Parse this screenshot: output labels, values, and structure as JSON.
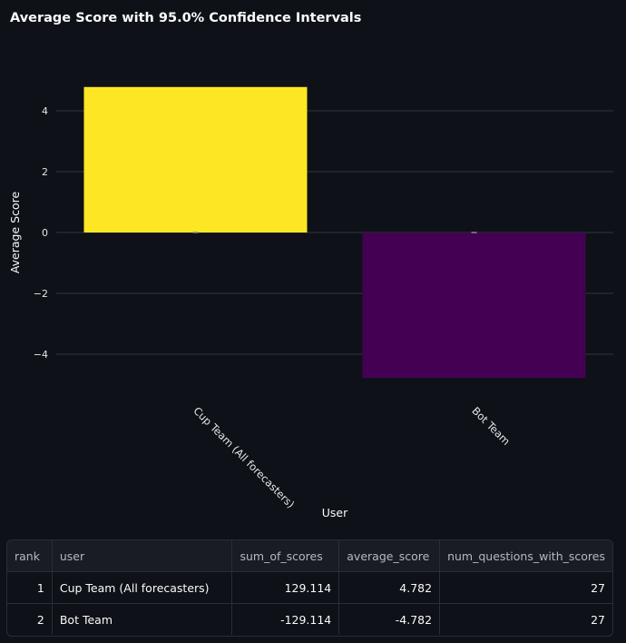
{
  "chart_data": {
    "type": "bar",
    "title": "Average Score with 95.0% Confidence Intervals",
    "xlabel": "User",
    "ylabel": "Average Score",
    "categories": [
      "Cup Team (All forecasters)",
      "Bot Team"
    ],
    "values": [
      4.782,
      -4.782
    ],
    "colors": [
      "#fde725",
      "#440154"
    ],
    "ylim": [
      -5.2,
      5.2
    ],
    "yticks": [
      4,
      2,
      0,
      -2,
      -4
    ],
    "ytick_labels": [
      "4",
      "2",
      "0",
      "−2",
      "−4"
    ],
    "grid": true
  },
  "table": {
    "columns": [
      "rank",
      "user",
      "sum_of_scores",
      "average_score",
      "num_questions_with_scores"
    ],
    "rows": [
      [
        "1",
        "Cup Team (All forecasters)",
        "129.114",
        "4.782",
        "27"
      ],
      [
        "2",
        "Bot Team",
        "-129.114",
        "-4.782",
        "27"
      ]
    ]
  }
}
